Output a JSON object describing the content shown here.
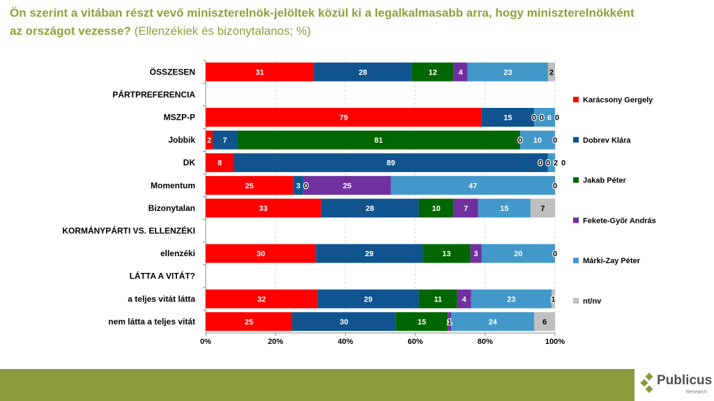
{
  "title": {
    "main": "Ön szerint a vitában részt vevő miniszterelnök-jelöltek közül ki a legalkalmasabb arra, hogy miniszterelnökként az országot vezesse?",
    "sub": "(Ellenzékiek és bizonytalanos; %)"
  },
  "logo": {
    "name": "Publicus",
    "sub": "Research"
  },
  "colors": {
    "title": "#8aa338",
    "footer": "#8c9b3e"
  },
  "chart_data": {
    "type": "bar",
    "orientation": "horizontal",
    "stacked": "100%",
    "xlim": [
      0,
      100
    ],
    "x_ticks": [
      "0%",
      "20%",
      "40%",
      "60%",
      "80%",
      "100%"
    ],
    "grid": "vertical dashed",
    "legend_position": "right",
    "series": [
      {
        "name": "Karácsony Gergely",
        "color": "#ff0000"
      },
      {
        "name": "Dobrev Klára",
        "color": "#10548f"
      },
      {
        "name": "Jakab Péter",
        "color": "#006600"
      },
      {
        "name": "Fekete-Győr András",
        "color": "#7030a0"
      },
      {
        "name": "Márki-Zay Péter",
        "color": "#4299c9"
      },
      {
        "name": "nt/nv",
        "color": "#bfbfbf"
      }
    ],
    "rows": [
      {
        "label": "ÖSSZESEN",
        "values": [
          31,
          28,
          12,
          4,
          23,
          2
        ]
      },
      {
        "label": "PÁRTPREFERENCIA",
        "values": null
      },
      {
        "label": "MSZP-P",
        "values": [
          79,
          15,
          0,
          0,
          6,
          0
        ]
      },
      {
        "label": "Jobbik",
        "values": [
          2,
          7,
          81,
          0,
          10,
          0
        ]
      },
      {
        "label": "DK",
        "values": [
          8,
          89,
          0,
          0,
          2,
          0
        ]
      },
      {
        "label": "Momentum",
        "values": [
          25,
          3,
          0,
          25,
          47,
          0
        ]
      },
      {
        "label": "Bizonytalan",
        "values": [
          33,
          28,
          10,
          7,
          15,
          7
        ]
      },
      {
        "label": "KORMÁNYPÁRTI VS. ELLENZÉKI",
        "values": null
      },
      {
        "label": "ellenzéki",
        "values": [
          30,
          29,
          13,
          3,
          20,
          0
        ]
      },
      {
        "label": "LÁTTA A VITÁT?",
        "values": null
      },
      {
        "label": "a teljes vitát látta",
        "values": [
          32,
          29,
          11,
          4,
          23,
          1
        ]
      },
      {
        "label": "nem látta a teljes vitát",
        "values": [
          25,
          30,
          15,
          1,
          24,
          6
        ]
      }
    ]
  }
}
